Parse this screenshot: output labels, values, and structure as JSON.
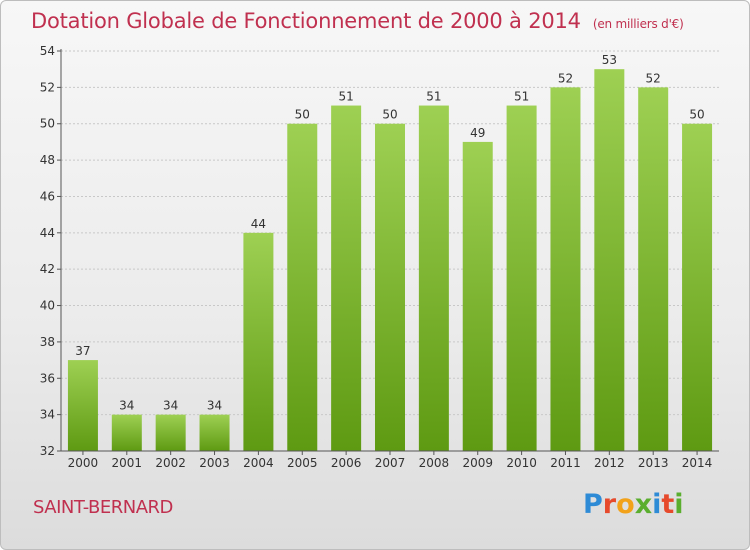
{
  "header": {
    "title": "Dotation Globale de Fonctionnement de 2000 à 2014",
    "unit": "(en milliers d'€)"
  },
  "footer": {
    "commune": "SAINT-BERNARD",
    "logo_text": "Proxiti"
  },
  "colors": {
    "bar_light": "#9ed053",
    "bar_dark": "#5e9a12",
    "title": "#c0304f"
  },
  "chart_data": {
    "type": "bar",
    "title": "Dotation Globale de Fonctionnement de 2000 à 2014",
    "xlabel": "",
    "ylabel": "",
    "categories": [
      "2000",
      "2001",
      "2002",
      "2003",
      "2004",
      "2005",
      "2006",
      "2007",
      "2008",
      "2009",
      "2010",
      "2011",
      "2012",
      "2013",
      "2014"
    ],
    "values": [
      37,
      34,
      34,
      34,
      44,
      50,
      51,
      50,
      51,
      49,
      51,
      52,
      53,
      52,
      50
    ],
    "ylim": [
      32,
      54
    ],
    "yticks": [
      32,
      34,
      36,
      38,
      40,
      42,
      44,
      46,
      48,
      50,
      52,
      54
    ],
    "grid": true,
    "legend": "none"
  }
}
